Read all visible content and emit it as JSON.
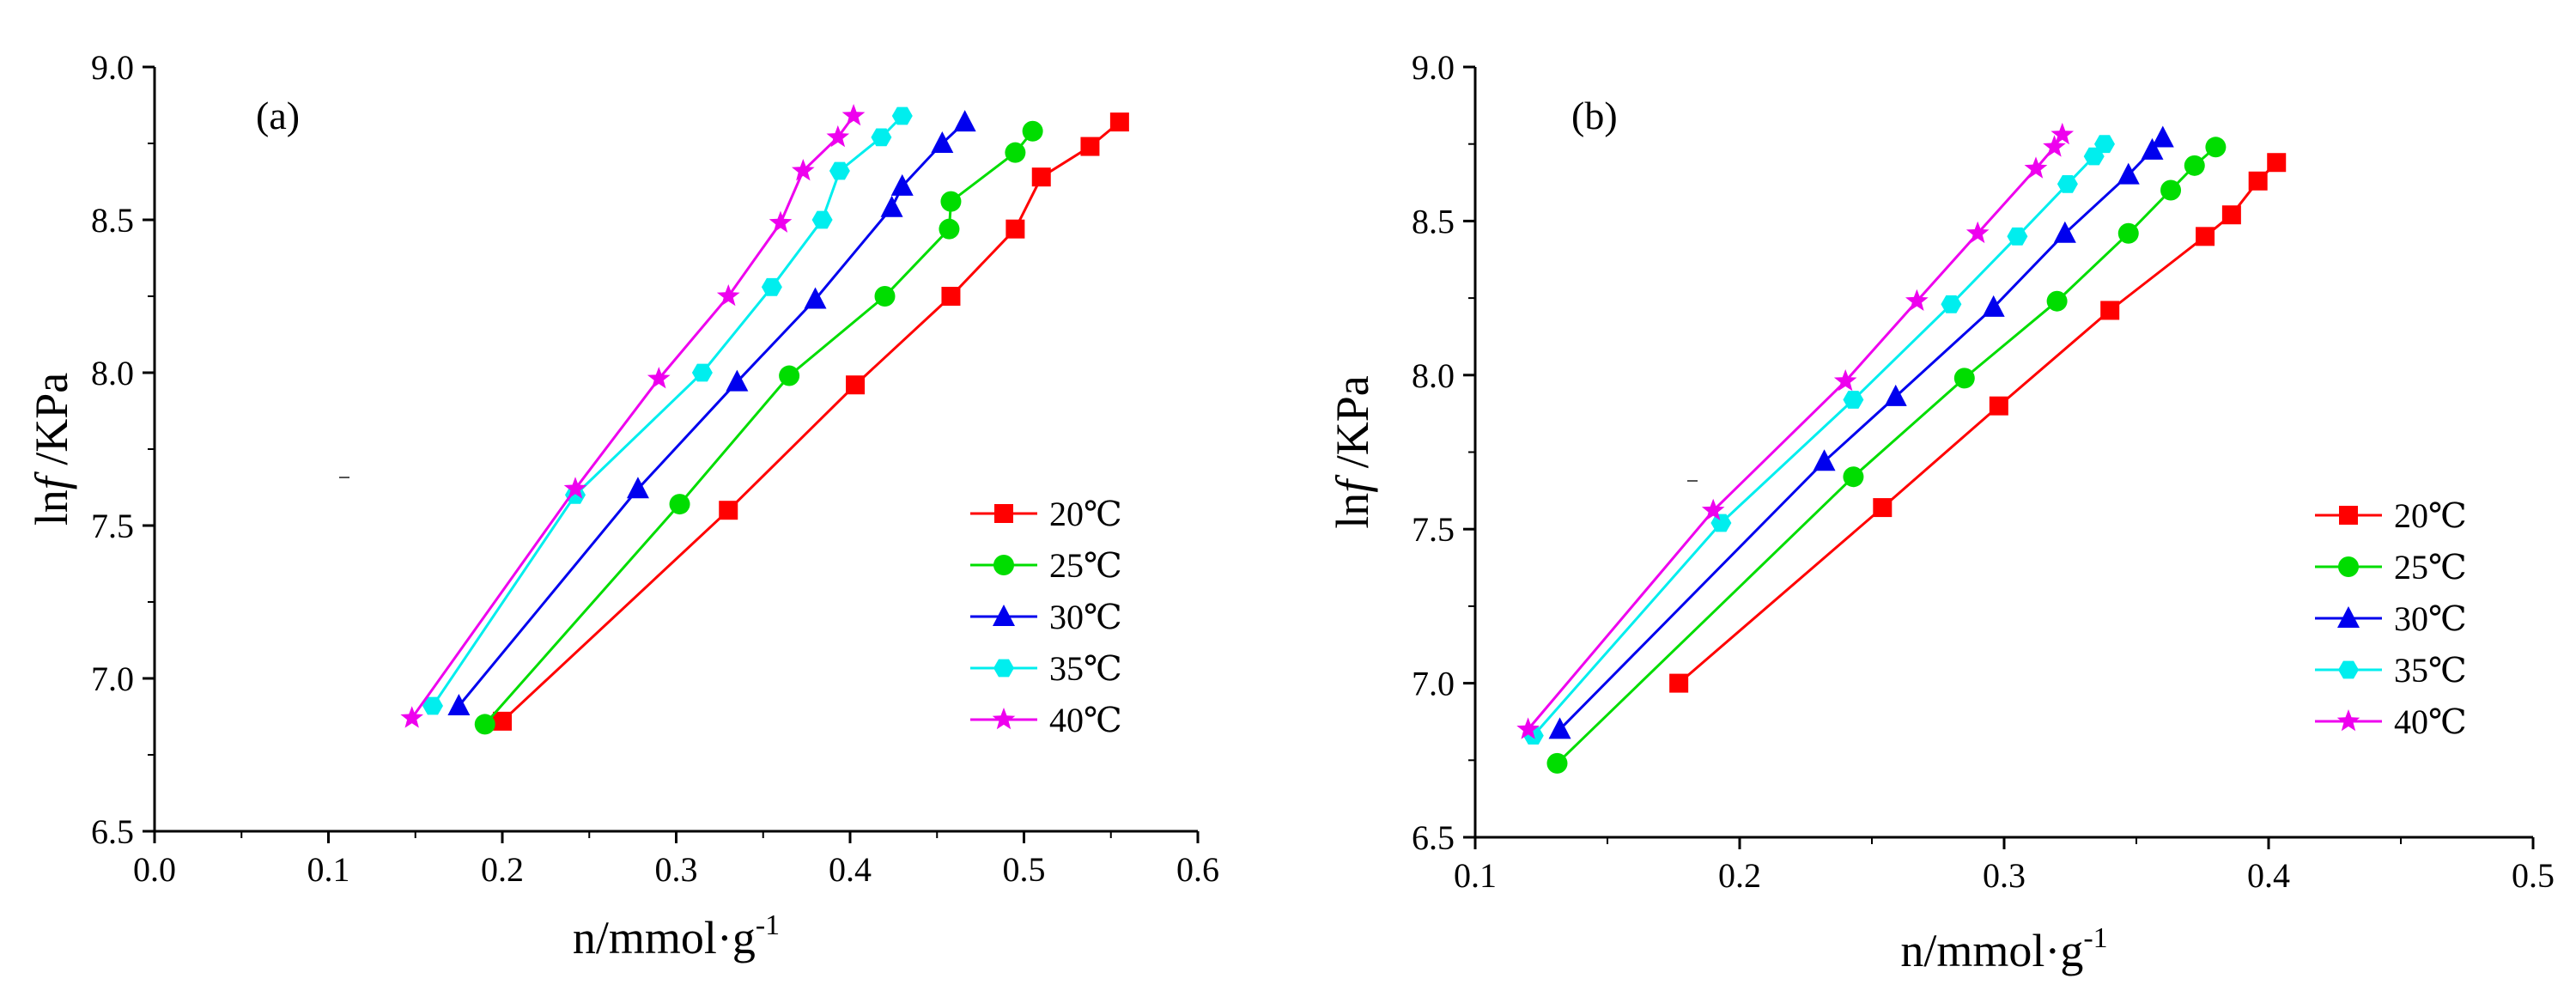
{
  "chart_data": [
    {
      "type": "line",
      "panel_label": "(a)",
      "xlabel": "n/mmol·g",
      "xlabel_sup": "-1",
      "ylabel": "ln",
      "ylabel_italic": "f",
      "ylabel_suffix": " /KPa",
      "xlim": [
        0.0,
        0.6
      ],
      "ylim": [
        6.5,
        9.0
      ],
      "xticks": [
        "0.0",
        "0.1",
        "0.2",
        "0.3",
        "0.4",
        "0.5",
        "0.6"
      ],
      "yticks": [
        "6.5",
        "7.0",
        "7.5",
        "8.0",
        "8.5",
        "9.0"
      ],
      "legend_position": "lower-right",
      "series": [
        {
          "name": "20℃",
          "color": "#ff0000",
          "marker": "square",
          "x": [
            0.2,
            0.33,
            0.403,
            0.458,
            0.495,
            0.51,
            0.538,
            0.555
          ],
          "y": [
            6.86,
            7.55,
            7.96,
            8.25,
            8.47,
            8.64,
            8.74,
            8.82
          ]
        },
        {
          "name": "25℃",
          "color": "#00dd00",
          "marker": "circle",
          "x": [
            0.19,
            0.302,
            0.365,
            0.42,
            0.457,
            0.458,
            0.495,
            0.505
          ],
          "y": [
            6.85,
            7.57,
            7.99,
            8.25,
            8.47,
            8.56,
            8.72,
            8.79
          ]
        },
        {
          "name": "30℃",
          "color": "#0000ee",
          "marker": "triangle",
          "x": [
            0.175,
            0.278,
            0.335,
            0.38,
            0.424,
            0.43,
            0.453,
            0.466
          ],
          "y": [
            6.91,
            7.62,
            7.97,
            8.24,
            8.54,
            8.61,
            8.75,
            8.82
          ]
        },
        {
          "name": "35℃",
          "color": "#00eeee",
          "marker": "hexagon",
          "x": [
            0.16,
            0.242,
            0.315,
            0.355,
            0.384,
            0.394,
            0.418,
            0.43
          ],
          "y": [
            6.91,
            7.6,
            8.0,
            8.28,
            8.5,
            8.66,
            8.77,
            8.84
          ]
        },
        {
          "name": "40℃",
          "color": "#ee00ee",
          "marker": "star",
          "x": [
            0.148,
            0.242,
            0.29,
            0.33,
            0.36,
            0.373,
            0.393,
            0.402
          ],
          "y": [
            6.87,
            7.62,
            7.98,
            8.25,
            8.49,
            8.66,
            8.77,
            8.84
          ]
        }
      ]
    },
    {
      "type": "line",
      "panel_label": "(b)",
      "xlabel": "n/mmol·g",
      "xlabel_sup": "-1",
      "ylabel": "ln",
      "ylabel_italic": "f",
      "ylabel_suffix": " /KPa",
      "xlim": [
        0.1,
        0.5
      ],
      "ylim": [
        6.5,
        9.0
      ],
      "xticks": [
        "0.1",
        "0.2",
        "0.3",
        "0.4",
        "0.5"
      ],
      "yticks": [
        "6.5",
        "7.0",
        "7.5",
        "8.0",
        "8.5",
        "9.0"
      ],
      "legend_position": "lower-right",
      "series": [
        {
          "name": "20℃",
          "color": "#ff0000",
          "marker": "square",
          "x": [
            0.177,
            0.254,
            0.298,
            0.34,
            0.376,
            0.386,
            0.396,
            0.403
          ],
          "y": [
            7.0,
            7.57,
            7.9,
            8.21,
            8.45,
            8.52,
            8.63,
            8.69
          ]
        },
        {
          "name": "25℃",
          "color": "#00dd00",
          "marker": "circle",
          "x": [
            0.131,
            0.243,
            0.285,
            0.32,
            0.347,
            0.363,
            0.372,
            0.38
          ],
          "y": [
            6.74,
            7.67,
            7.99,
            8.24,
            8.46,
            8.6,
            8.68,
            8.74
          ]
        },
        {
          "name": "30℃",
          "color": "#0000ee",
          "marker": "triangle",
          "x": [
            0.132,
            0.232,
            0.259,
            0.296,
            0.323,
            0.347,
            0.356,
            0.36
          ],
          "y": [
            6.85,
            7.72,
            7.93,
            8.22,
            8.46,
            8.65,
            8.73,
            8.77
          ]
        },
        {
          "name": "35℃",
          "color": "#00eeee",
          "marker": "hexagon",
          "x": [
            0.122,
            0.193,
            0.243,
            0.28,
            0.305,
            0.324,
            0.334,
            0.338
          ],
          "y": [
            6.83,
            7.52,
            7.92,
            8.23,
            8.45,
            8.62,
            8.71,
            8.75
          ]
        },
        {
          "name": "40℃",
          "color": "#ee00ee",
          "marker": "star",
          "x": [
            0.12,
            0.19,
            0.24,
            0.267,
            0.29,
            0.312,
            0.319,
            0.322
          ],
          "y": [
            6.85,
            7.56,
            7.98,
            8.24,
            8.46,
            8.67,
            8.74,
            8.78
          ]
        }
      ]
    }
  ]
}
